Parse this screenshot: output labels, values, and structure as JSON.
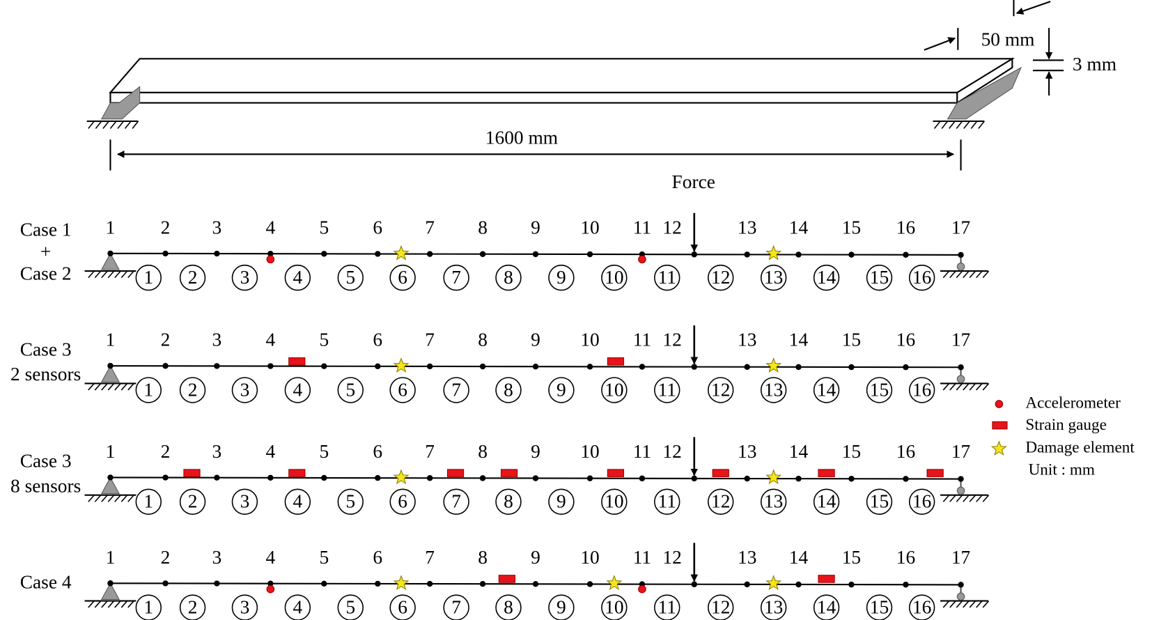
{
  "dimensions": {
    "width": "50 mm",
    "thickness": "3 mm",
    "length": "1600 mm"
  },
  "force": "Force",
  "cases": [
    {
      "label": [
        "Case 1",
        "+",
        "Case 2"
      ]
    },
    {
      "label": [
        "Case 3",
        "2 sensors"
      ]
    },
    {
      "label": [
        "Case 3",
        "8 sensors"
      ]
    },
    {
      "label": [
        "Case 4"
      ]
    }
  ],
  "nodes": [
    "1",
    "2",
    "3",
    "4",
    "5",
    "6",
    "7",
    "8",
    "9",
    "10",
    "11",
    "12",
    "13",
    "14",
    "15",
    "16",
    "17"
  ],
  "elements": [
    "1",
    "2",
    "3",
    "4",
    "5",
    "6",
    "7",
    "8",
    "9",
    "10",
    "11",
    "12",
    "13",
    "14",
    "15",
    "16"
  ],
  "legend": {
    "items": [
      "Accelerometer",
      "Strain gauge",
      "Damage element"
    ],
    "unit": "Unit : mm"
  }
}
